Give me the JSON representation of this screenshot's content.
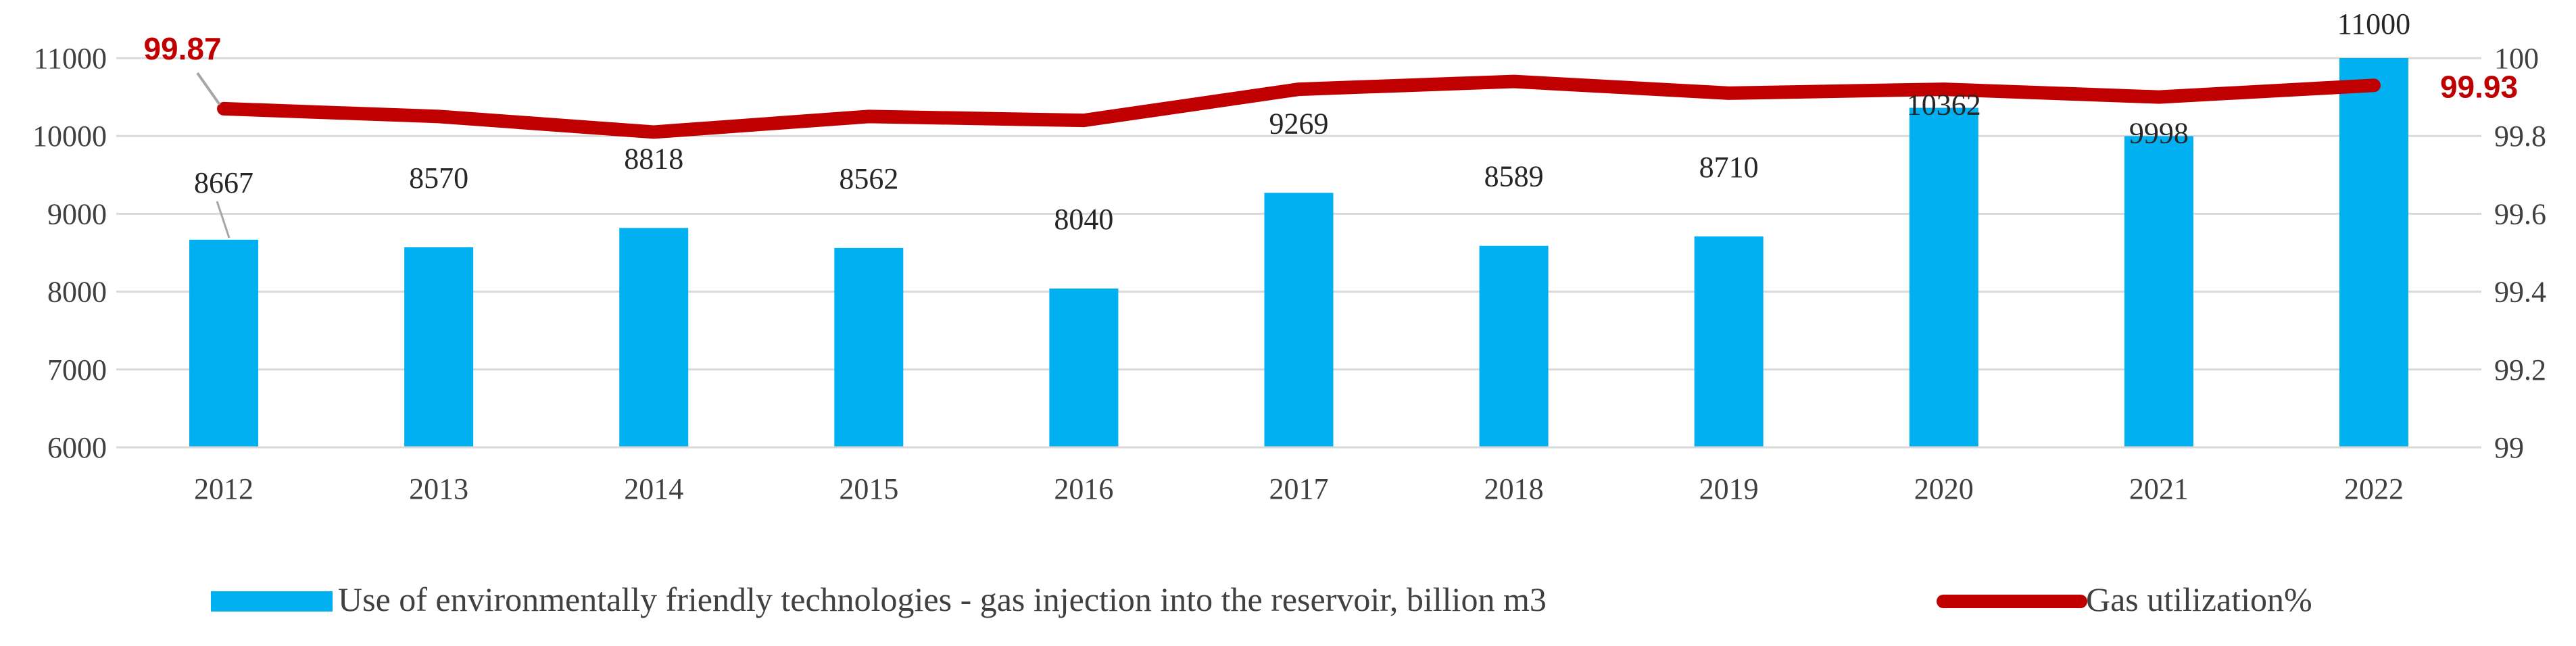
{
  "chart_data": {
    "type": "bar",
    "categories": [
      "2012",
      "2013",
      "2014",
      "2015",
      "2016",
      "2017",
      "2018",
      "2019",
      "2020",
      "2021",
      "2022"
    ],
    "series": [
      {
        "name": "Use of environmentally friendly technologies - gas injection into the reservoir, billion m3",
        "type": "bar",
        "axis": "left",
        "color": "#00b0f0",
        "values": [
          8667,
          8570,
          8818,
          8562,
          8040,
          9269,
          8589,
          8710,
          10362,
          9998,
          11000
        ],
        "labels": [
          "8667",
          "8570",
          "8818",
          "8562",
          "8040",
          "9269",
          "8589",
          "8710",
          "10362",
          "9998",
          "11000"
        ]
      },
      {
        "name": "Gas utilization%",
        "type": "line",
        "axis": "right",
        "color": "#c00000",
        "values": [
          99.87,
          99.85,
          99.81,
          99.85,
          99.84,
          99.92,
          99.94,
          99.91,
          99.92,
          99.9,
          99.93
        ],
        "end_labels": [
          "99.87",
          "99.93"
        ]
      }
    ],
    "y_left": {
      "min": 6000,
      "max": 11000,
      "ticks": [
        "6000",
        "7000",
        "8000",
        "9000",
        "10000",
        "11000"
      ]
    },
    "y_right": {
      "min": 99,
      "max": 100,
      "ticks": [
        "99",
        "99.2",
        "99.4",
        "99.6",
        "99.8",
        "100"
      ]
    },
    "grid": true,
    "legend_position": "bottom",
    "title": "",
    "xlabel": "",
    "ylabel": ""
  }
}
